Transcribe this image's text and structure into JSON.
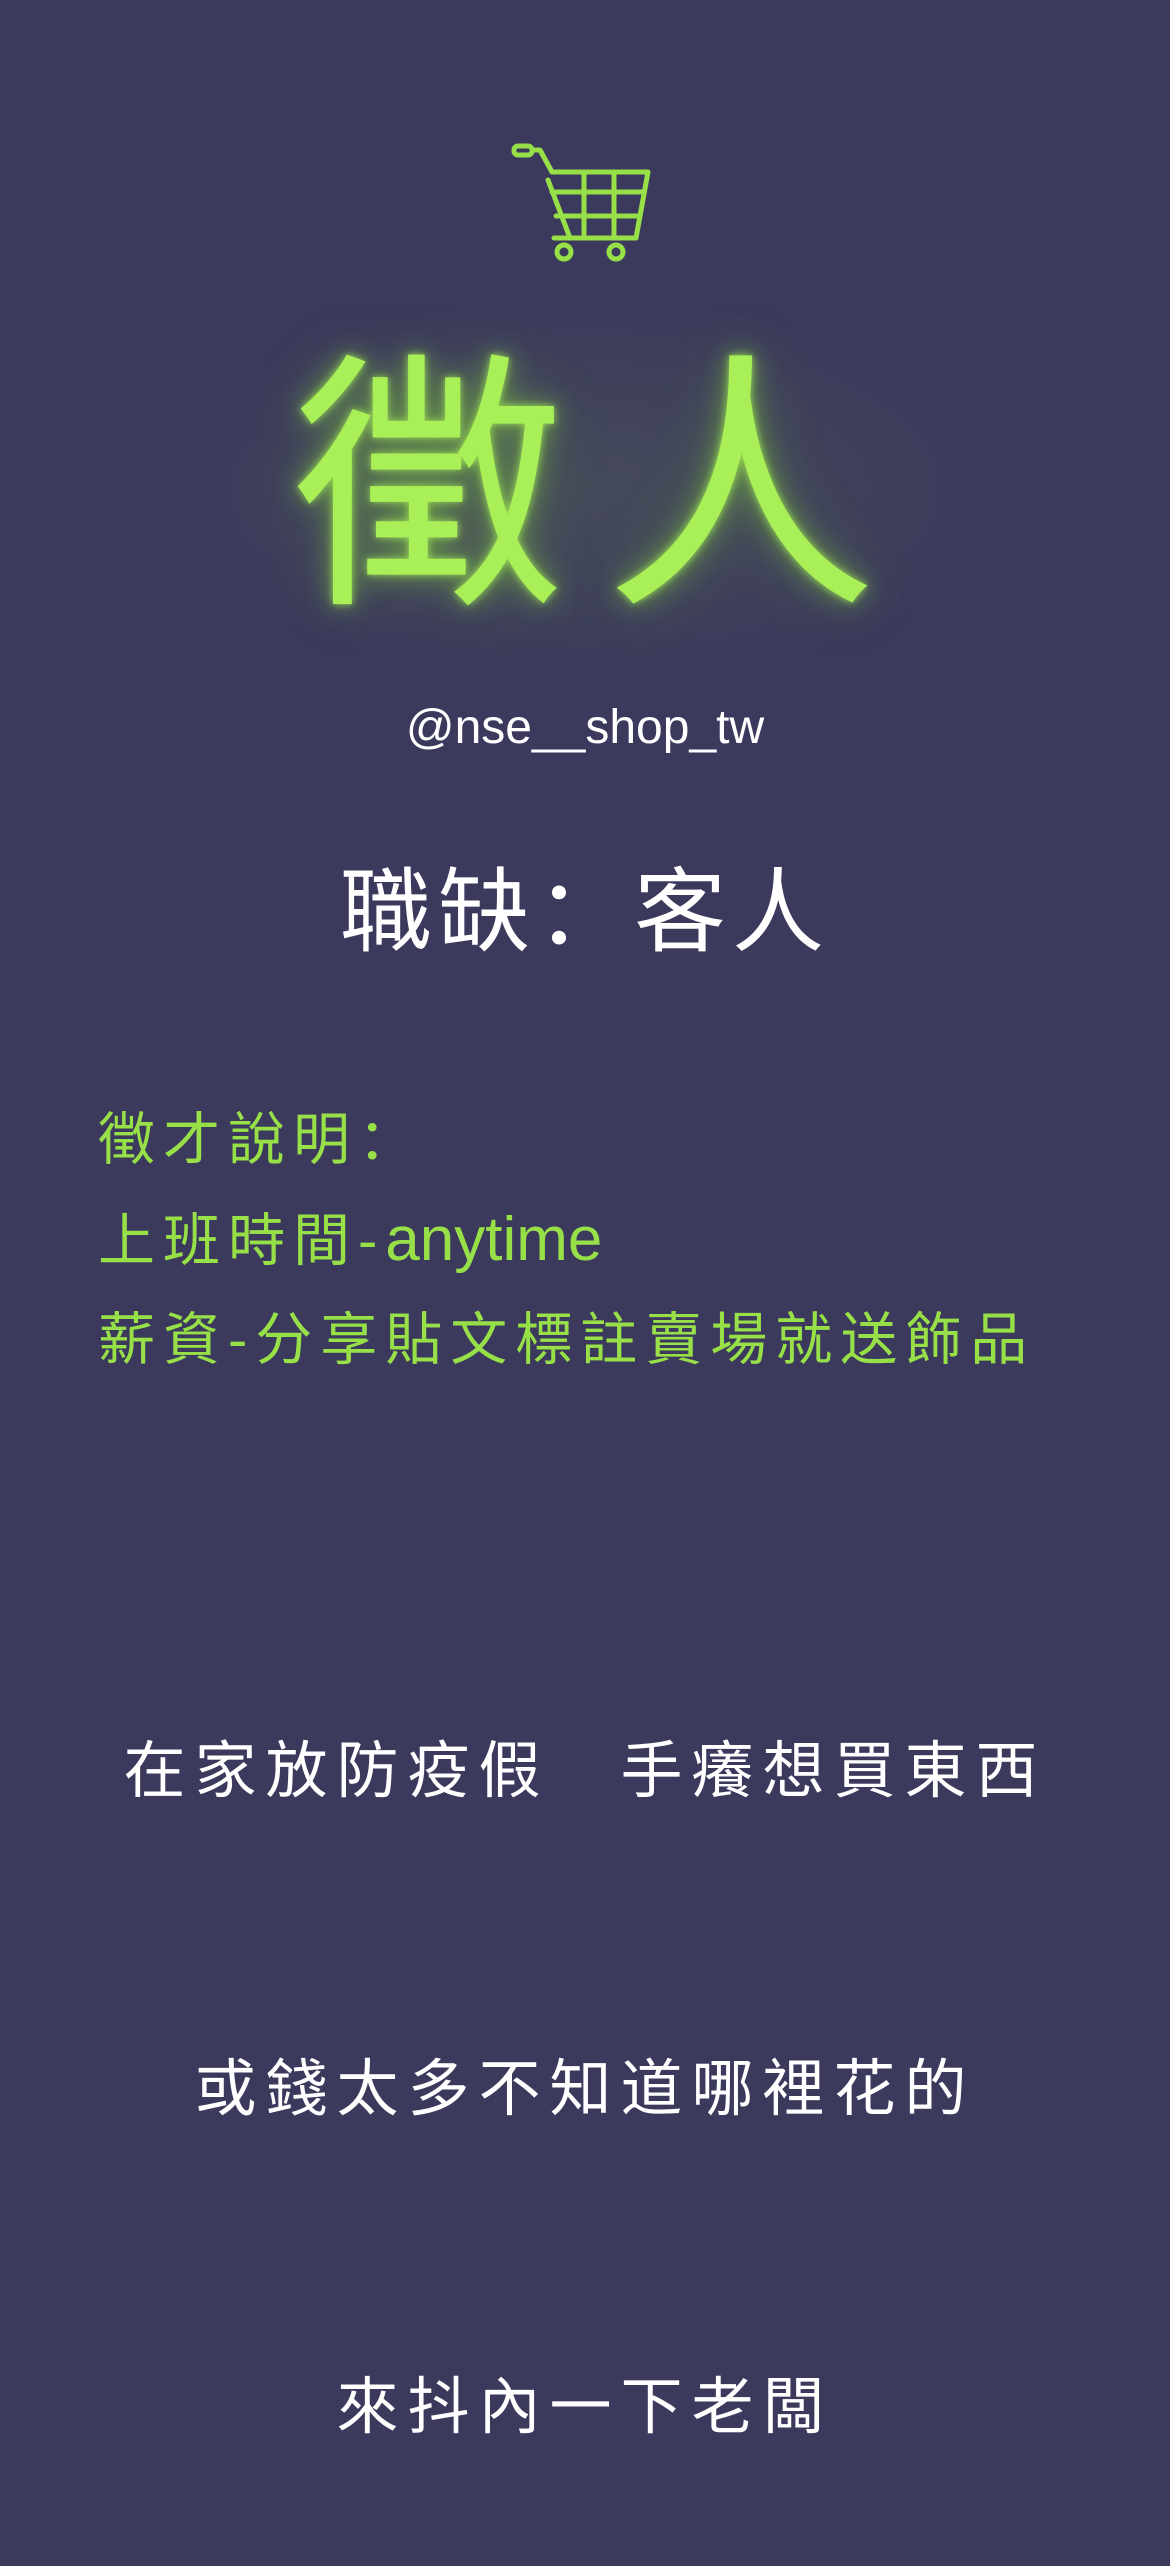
{
  "icons": {
    "cart": "shopping-cart-icon"
  },
  "colors": {
    "background": "#3b395c",
    "accent_green": "#a8ef58",
    "text_white": "#ffffff"
  },
  "hero": {
    "title": "徵人"
  },
  "handle": "@nse__shop_tw",
  "job": {
    "title": "職缺：客人"
  },
  "details": {
    "heading": "徵才說明：",
    "hours_label": "上班時間-",
    "hours_value": "anytime",
    "salary": "薪資-分享貼文標註賣場就送飾品"
  },
  "pitch": {
    "line1": "在家放防疫假　手癢想買東西",
    "line2": "或錢太多不知道哪裡花的",
    "line3": "來抖內一下老闆"
  }
}
